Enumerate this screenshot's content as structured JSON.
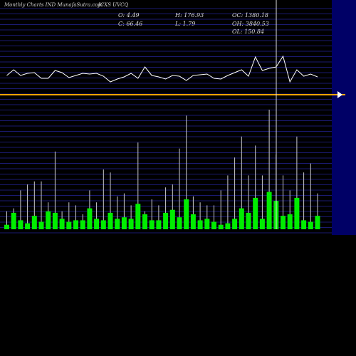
{
  "header": {
    "source": "Monthly Charts IND MunafaSutra.com",
    "symbol": "JCXS UVCQ",
    "open": "O: 4.49",
    "close": "C: 66.46",
    "high": "H: 176.93",
    "low": "L: 1.79",
    "oc": "OC: 1380.18",
    "oh": "OH: 3840.53",
    "ol": "OL: 150.84"
  },
  "colors": {
    "background": "#000000",
    "grid": "#1a1a70",
    "bar": "#00ee00",
    "wick": "#cccccc",
    "line": "#ffffff",
    "reference": "#ffa500",
    "right_panel": "#000066"
  },
  "chart_data": {
    "type": "bar",
    "grid": true,
    "volume": [
      3,
      11,
      6,
      4,
      9,
      5,
      12,
      11,
      7,
      5,
      6,
      6,
      14,
      7,
      6,
      11,
      7,
      8,
      7,
      17,
      10,
      6,
      6,
      11,
      13,
      8,
      20,
      10,
      6,
      7,
      5,
      3,
      4,
      7,
      14,
      11,
      21,
      7,
      25,
      19,
      9,
      10,
      21,
      6,
      5,
      9
    ],
    "volume_high": [
      12,
      14,
      26,
      30,
      32,
      32,
      18,
      52,
      12,
      18,
      16,
      10,
      26,
      18,
      40,
      38,
      22,
      24,
      16,
      58,
      12,
      20,
      16,
      28,
      30,
      54,
      76,
      22,
      18,
      16,
      16,
      26,
      36,
      48,
      62,
      36,
      56,
      36,
      80,
      50,
      36,
      26,
      62,
      38,
      44,
      24
    ],
    "line": [
      44,
      52,
      44,
      47,
      48,
      40,
      40,
      51,
      48,
      41,
      44,
      47,
      46,
      47,
      43,
      35,
      39,
      42,
      47,
      40,
      56,
      44,
      42,
      39,
      44,
      43,
      37,
      44,
      45,
      46,
      40,
      39,
      44,
      48,
      52,
      43,
      70,
      51,
      54,
      56,
      71,
      35,
      52,
      43,
      46,
      42
    ],
    "reference_level": 30
  }
}
